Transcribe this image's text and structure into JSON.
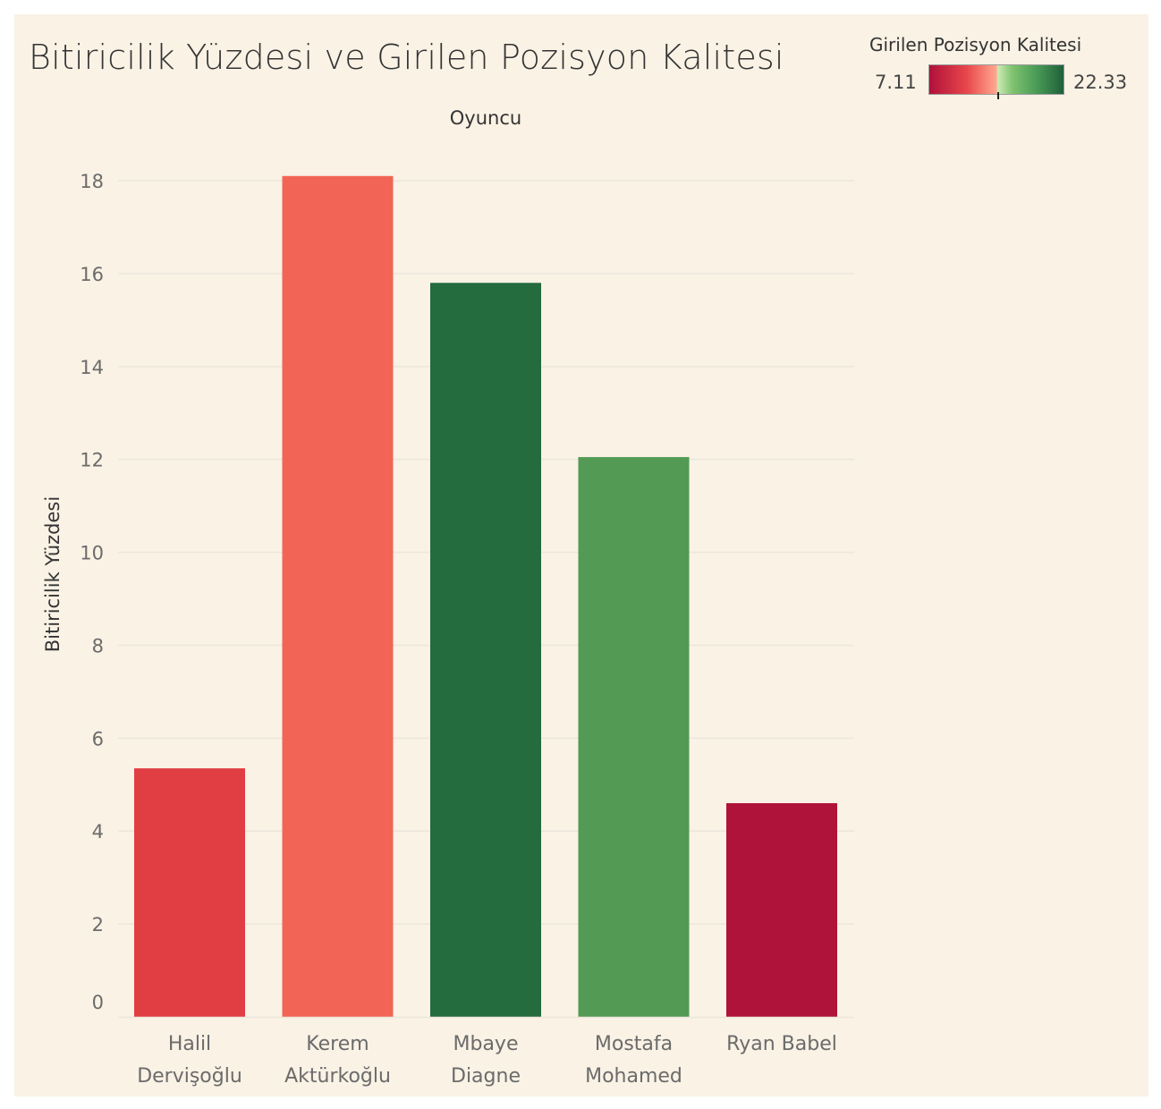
{
  "chart_data": {
    "type": "bar",
    "title": "Bitiricilik Yüzdesi ve Girilen Pozisyon Kalitesi",
    "xlabel": "Oyuncu",
    "ylabel": "Bitiricilik Yüzdesi",
    "categories": [
      [
        "Halil",
        "Dervişoğlu"
      ],
      [
        "Kerem",
        "Aktürkoğlu"
      ],
      [
        "Mbaye",
        "Diagne"
      ],
      [
        "Mostafa",
        "Mohamed"
      ],
      [
        "Ryan Babel"
      ]
    ],
    "values": [
      5.35,
      18.1,
      15.8,
      12.05,
      4.6
    ],
    "colors": [
      "#e03e43",
      "#f26556",
      "#246b3e",
      "#539a55",
      "#af1339"
    ],
    "ylim": [
      0,
      18
    ],
    "yticks": [
      0,
      2,
      4,
      6,
      8,
      10,
      12,
      14,
      16,
      18
    ],
    "grid": true,
    "color_legend": {
      "title": "Girilen Pozisyon Kalitesi",
      "min_label": "7.11",
      "max_label": "22.33",
      "position": "top-right"
    }
  }
}
